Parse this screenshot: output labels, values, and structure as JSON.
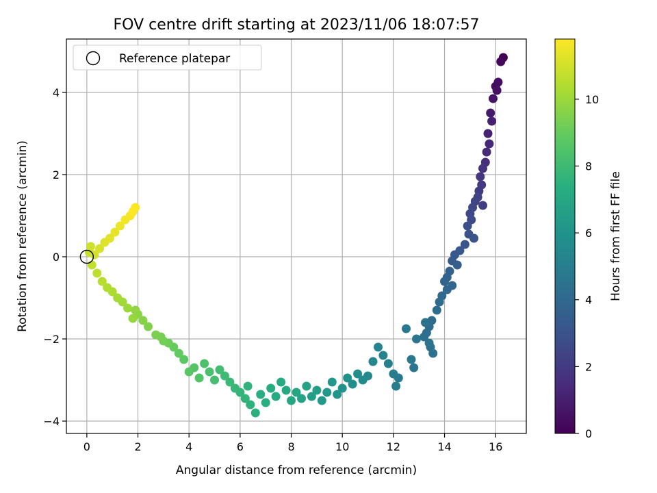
{
  "chart_data": {
    "type": "scatter",
    "title": "FOV centre drift starting at 2023/11/06 18:07:57",
    "xlabel": "Angular distance from reference (arcmin)",
    "ylabel": "Rotation from reference (arcmin)",
    "xlim": [
      -0.8,
      17.2
    ],
    "ylim": [
      -4.3,
      5.3
    ],
    "xticks": [
      0,
      2,
      4,
      6,
      8,
      10,
      12,
      14,
      16
    ],
    "yticks": [
      -4,
      -2,
      0,
      2,
      4
    ],
    "grid": true,
    "legend": {
      "position": "top-left",
      "entries": [
        "Reference platepar"
      ]
    },
    "reference_point": {
      "x": 0,
      "y": 0
    },
    "colorbar": {
      "label": "Hours from first FF file",
      "colormap": "viridis",
      "range": [
        0,
        11.8
      ],
      "ticks": [
        0,
        2,
        4,
        6,
        8,
        10
      ]
    },
    "x": [
      16.3,
      16.2,
      16.0,
      16.1,
      16.05,
      15.9,
      15.8,
      15.85,
      15.7,
      15.75,
      15.65,
      15.6,
      15.5,
      15.4,
      15.45,
      15.35,
      15.5,
      15.3,
      15.2,
      15.1,
      15.0,
      15.05,
      14.9,
      14.95,
      15.15,
      14.8,
      14.6,
      14.4,
      14.3,
      14.5,
      14.2,
      14.1,
      14.0,
      14.3,
      14.1,
      13.9,
      13.8,
      13.7,
      13.5,
      13.4,
      13.3,
      13.2,
      13.45,
      13.55,
      13.4,
      13.25,
      12.9,
      12.8,
      12.7,
      12.5,
      12.2,
      12.0,
      12.1,
      11.8,
      11.6,
      11.4,
      11.2,
      11.0,
      10.8,
      10.6,
      10.4,
      10.2,
      10.0,
      9.8,
      9.6,
      9.4,
      9.2,
      9.0,
      8.8,
      8.6,
      8.4,
      8.2,
      8.0,
      7.8,
      7.6,
      7.4,
      7.2,
      7.0,
      6.8,
      6.6,
      6.4,
      6.3,
      6.2,
      6.0,
      5.8,
      5.6,
      5.4,
      5.2,
      5.0,
      4.8,
      4.6,
      4.4,
      4.2,
      4.0,
      3.8,
      3.6,
      3.4,
      3.2,
      3.0,
      2.9,
      2.7,
      2.4,
      2.2,
      2.0,
      1.9,
      1.8,
      1.6,
      1.4,
      1.2,
      1.0,
      0.8,
      0.6,
      0.4,
      0.2,
      0.1,
      0.15,
      0.3,
      0.5,
      0.7,
      0.9,
      1.1,
      1.3,
      1.5,
      1.7,
      1.8,
      1.9
    ],
    "y": [
      4.85,
      4.75,
      4.15,
      4.25,
      4.05,
      3.85,
      3.5,
      3.3,
      3.0,
      2.75,
      2.55,
      2.3,
      2.15,
      1.95,
      1.75,
      1.6,
      1.25,
      1.45,
      1.35,
      1.2,
      1.05,
      0.9,
      0.75,
      0.55,
      0.45,
      0.3,
      0.15,
      0.05,
      -0.1,
      -0.2,
      -0.35,
      -0.5,
      -0.6,
      -0.7,
      -0.8,
      -0.95,
      -1.1,
      -1.3,
      -1.55,
      -1.7,
      -1.85,
      -1.95,
      -2.2,
      -2.35,
      -2.1,
      -1.6,
      -2.0,
      -2.7,
      -2.5,
      -1.75,
      -2.95,
      -2.85,
      -3.15,
      -2.6,
      -2.4,
      -2.2,
      -2.55,
      -2.9,
      -3.0,
      -2.85,
      -3.1,
      -2.95,
      -3.2,
      -3.35,
      -3.05,
      -3.3,
      -3.5,
      -3.25,
      -3.4,
      -3.15,
      -3.45,
      -3.3,
      -3.5,
      -3.25,
      -3.05,
      -3.4,
      -3.2,
      -3.55,
      -3.35,
      -3.8,
      -3.6,
      -3.15,
      -3.45,
      -3.3,
      -3.2,
      -3.05,
      -2.9,
      -2.75,
      -3.0,
      -2.8,
      -2.6,
      -2.95,
      -2.7,
      -2.8,
      -2.5,
      -2.35,
      -2.2,
      -2.1,
      -2.05,
      -1.95,
      -1.9,
      -1.7,
      -1.55,
      -1.4,
      -1.3,
      -1.5,
      -1.25,
      -1.1,
      -1.0,
      -0.85,
      -0.75,
      -0.6,
      -0.4,
      -0.2,
      0.1,
      0.25,
      0.05,
      0.2,
      0.35,
      0.45,
      0.6,
      0.75,
      0.9,
      1.0,
      1.1,
      1.2
    ],
    "c": [
      0.05,
      0.2,
      0.35,
      0.45,
      0.55,
      0.7,
      0.85,
      1.0,
      1.15,
      1.3,
      1.45,
      1.6,
      1.7,
      1.85,
      2.0,
      2.1,
      2.2,
      2.3,
      2.4,
      2.5,
      2.6,
      2.7,
      2.8,
      2.9,
      3.0,
      3.1,
      3.2,
      3.3,
      3.4,
      3.5,
      3.6,
      3.7,
      3.8,
      3.85,
      3.9,
      4.0,
      4.05,
      4.1,
      4.15,
      4.2,
      4.25,
      4.3,
      4.35,
      4.4,
      4.45,
      4.5,
      4.55,
      4.6,
      4.65,
      4.7,
      4.8,
      4.9,
      5.0,
      5.1,
      5.2,
      5.3,
      5.4,
      5.5,
      5.6,
      5.7,
      5.8,
      5.9,
      6.0,
      6.1,
      6.2,
      6.3,
      6.4,
      6.5,
      6.6,
      6.7,
      6.8,
      6.9,
      7.0,
      7.05,
      7.1,
      7.2,
      7.3,
      7.35,
      7.4,
      7.5,
      7.55,
      7.6,
      7.65,
      7.7,
      7.8,
      7.9,
      8.0,
      8.1,
      8.2,
      8.3,
      8.4,
      8.5,
      8.6,
      8.7,
      8.8,
      8.9,
      9.0,
      9.1,
      9.2,
      9.3,
      9.4,
      9.5,
      9.6,
      9.7,
      9.8,
      9.9,
      10.0,
      10.1,
      10.2,
      10.3,
      10.4,
      10.5,
      10.6,
      10.7,
      10.8,
      10.9,
      11.0,
      11.1,
      11.2,
      11.3,
      11.4,
      11.5,
      11.6,
      11.7,
      11.75,
      11.8
    ]
  }
}
